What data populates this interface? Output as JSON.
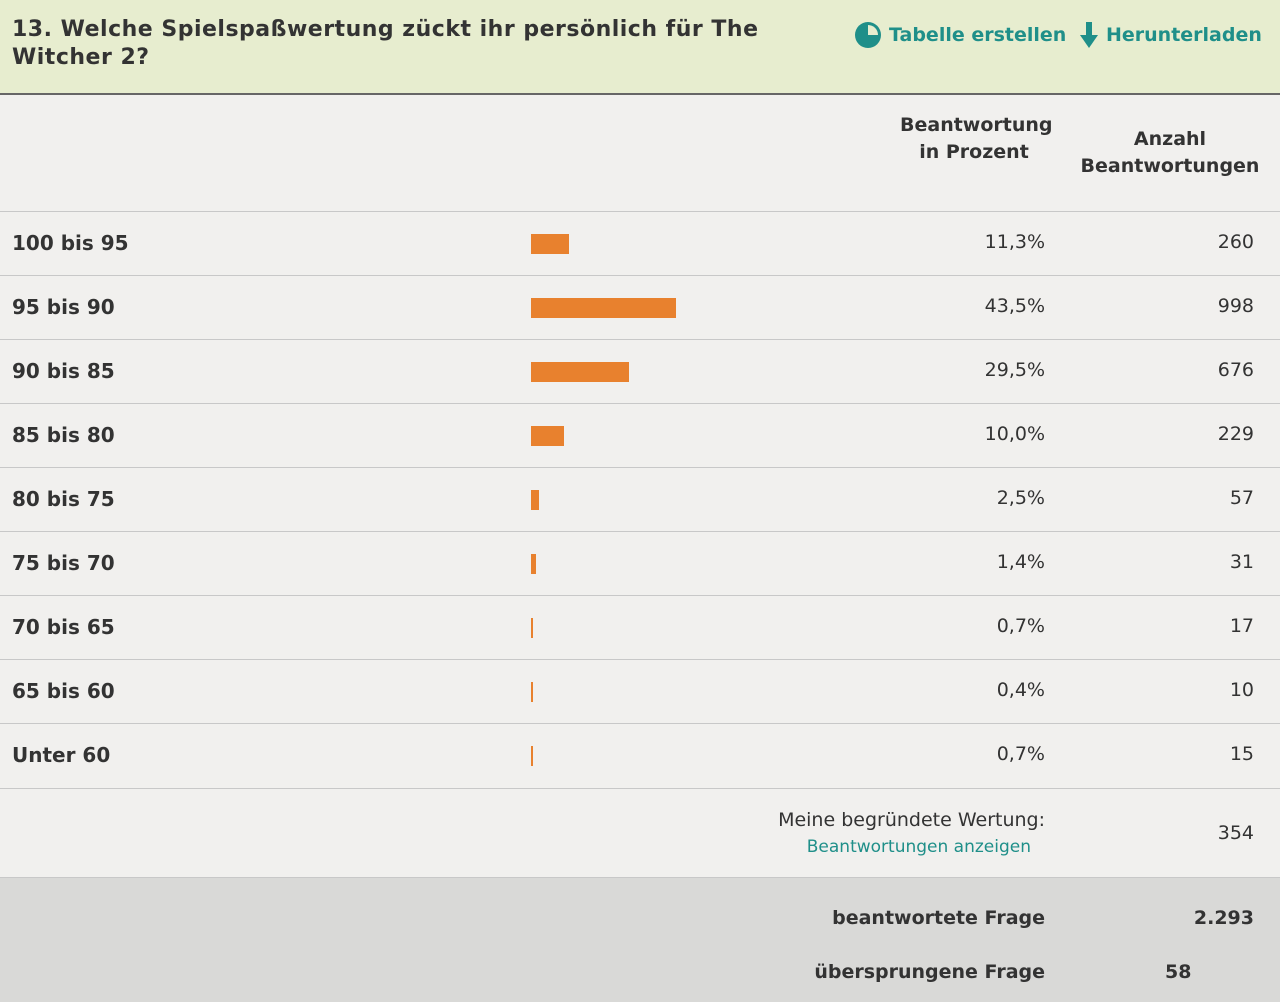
{
  "header": {
    "title": "13. Welche Spielspaßwertung zückt ihr persönlich für The Witcher 2?",
    "actions": [
      "Tabelle erstellen",
      "Herunterladen"
    ]
  },
  "table": {
    "columns": [
      "Beantwortung in Prozent",
      "Anzahl Beantwortungen"
    ],
    "rows": [
      {
        "label": "100 bis 95",
        "percent": 11.3,
        "percent_label": "11,3%",
        "count": "260"
      },
      {
        "label": "95 bis 90",
        "percent": 43.5,
        "percent_label": "43,5%",
        "count": "998"
      },
      {
        "label": "90 bis 85",
        "percent": 29.5,
        "percent_label": "29,5%",
        "count": "676"
      },
      {
        "label": "85 bis 80",
        "percent": 10.0,
        "percent_label": "10,0%",
        "count": "229"
      },
      {
        "label": "80 bis 75",
        "percent": 2.5,
        "percent_label": "2,5%",
        "count": "57"
      },
      {
        "label": "75 bis 70",
        "percent": 1.4,
        "percent_label": "1,4%",
        "count": "31"
      },
      {
        "label": "70 bis 65",
        "percent": 0.7,
        "percent_label": "0,7%",
        "count": "17"
      },
      {
        "label": "65 bis 60",
        "percent": 0.4,
        "percent_label": "0,4%",
        "count": "10"
      },
      {
        "label": "Unter 60",
        "percent": 0.7,
        "percent_label": "0,7%",
        "count": "15"
      }
    ],
    "other": {
      "label": "Meine begründete Wertung:",
      "link": "Beantwortungen anzeigen",
      "count": "354"
    }
  },
  "summary": {
    "answered": {
      "label": "beantwortete Frage",
      "value": "2.293"
    },
    "skipped": {
      "label": "übersprungene Frage",
      "value": "58"
    }
  }
}
